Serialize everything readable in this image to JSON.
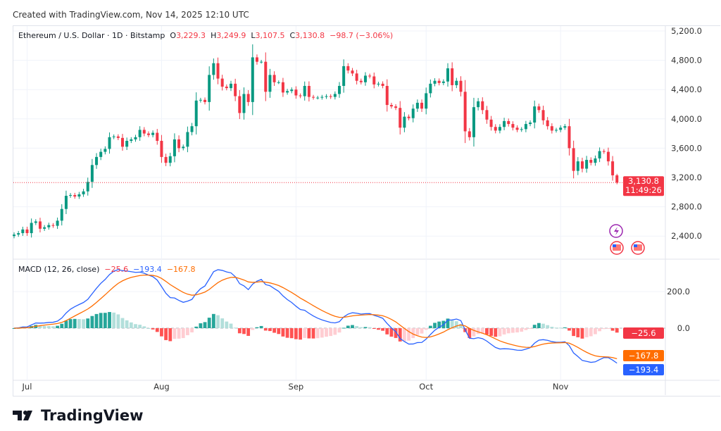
{
  "credit": "Created with TradingView.com, Nov 14, 2025 12:10 UTC",
  "legend": {
    "symbol": "Ethereum / U.S. Dollar · 1D · Bitstamp",
    "o_label": "O",
    "o": "3,229.3",
    "h_label": "H",
    "h": "3,249.9",
    "l_label": "L",
    "l": "3,107.5",
    "c_label": "C",
    "c": "3,130.8",
    "change": "−98.7 (−3.06%)"
  },
  "macd_legend": {
    "label": "MACD (12, 26, close)",
    "hist": "−25.6",
    "macd": "−193.4",
    "signal": "−167.8"
  },
  "price_axis": {
    "ticks": [
      "5,200.0",
      "4,800.0",
      "4,400.0",
      "4,000.0",
      "3,600.0",
      "3,200.0",
      "2,800.0",
      "2,400.0"
    ],
    "last_price": "3,130.8",
    "countdown": "11:49:26"
  },
  "macd_axis": {
    "ticks": [
      "200.0",
      "0.0"
    ],
    "hist_tag": "−25.6",
    "signal_tag": "−167.8",
    "macd_tag": "−193.4"
  },
  "time_axis": [
    "Jul",
    "Aug",
    "Sep",
    "Oct",
    "Nov"
  ],
  "logo": "TradingView",
  "colors": {
    "up": "#089981",
    "down": "#f23645",
    "macd": "#2962ff",
    "signal": "#ff6d00"
  },
  "chart_data": {
    "type": "candlestick",
    "first_date": "2025-06-28",
    "last_date": "2025-11-14",
    "interval": "1D",
    "ylim": [
      2200,
      5300
    ],
    "last_candle": {
      "open": 3229.3,
      "high": 3249.9,
      "low": 3107.5,
      "close": 3130.8
    },
    "closes": [
      2420,
      2440,
      2490,
      2440,
      2580,
      2600,
      2500,
      2520,
      2550,
      2540,
      2610,
      2770,
      2950,
      2960,
      2940,
      2970,
      3010,
      3140,
      3370,
      3480,
      3550,
      3590,
      3750,
      3760,
      3740,
      3620,
      3700,
      3720,
      3750,
      3850,
      3800,
      3780,
      3810,
      3700,
      3480,
      3400,
      3490,
      3720,
      3600,
      3620,
      3820,
      3900,
      4250,
      4260,
      4230,
      4600,
      4760,
      4550,
      4440,
      4420,
      4480,
      4310,
      4080,
      4340,
      4230,
      4840,
      4780,
      4780,
      4370,
      4600,
      4500,
      4500,
      4360,
      4380,
      4400,
      4320,
      4310,
      4450,
      4300,
      4290,
      4290,
      4300,
      4310,
      4300,
      4340,
      4450,
      4720,
      4660,
      4620,
      4520,
      4500,
      4590,
      4580,
      4470,
      4480,
      4450,
      4190,
      4170,
      4150,
      3880,
      4030,
      4010,
      4140,
      4220,
      4140,
      4350,
      4480,
      4520,
      4490,
      4510,
      4690,
      4460,
      4520,
      4370,
      3830,
      3750,
      4160,
      4240,
      4120,
      3990,
      3890,
      3840,
      3890,
      3970,
      3930,
      3880,
      3850,
      3860,
      3930,
      3950,
      4170,
      4120,
      3980,
      3900,
      3840,
      3850,
      3880,
      3900,
      3600,
      3290,
      3420,
      3320,
      3440,
      3400,
      3460,
      3560,
      3550,
      3420,
      3229.3,
      3130.8
    ],
    "macd": {
      "fast": 12,
      "slow": 26,
      "signal": 9,
      "ylim": [
        -280,
        380
      ]
    }
  }
}
